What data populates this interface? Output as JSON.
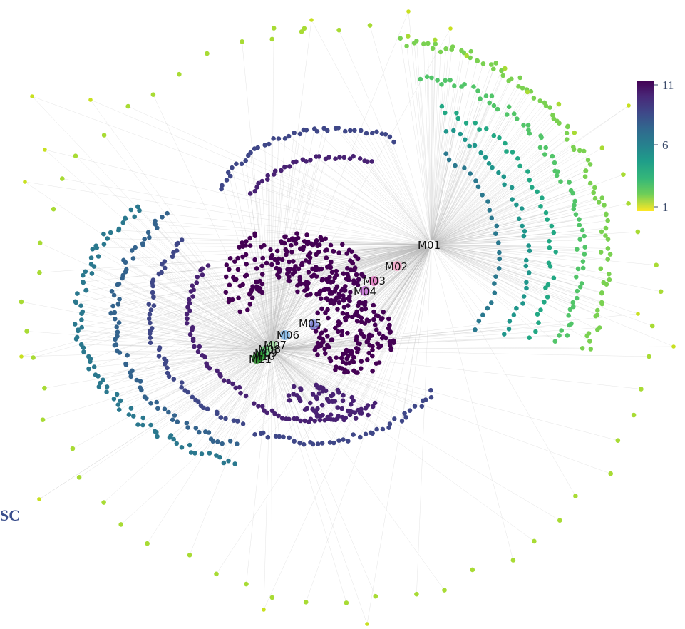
{
  "hubs": [
    {
      "label": "M01",
      "color": "#ffffff"
    },
    {
      "label": "M02",
      "color": "#f4a6c8"
    },
    {
      "label": "M03",
      "color": "#e377c2"
    },
    {
      "label": "M04",
      "color": "#c06bd0"
    },
    {
      "label": "M05",
      "color": "#8a96e0"
    },
    {
      "label": "M06",
      "color": "#7fb6e8"
    },
    {
      "label": "M07",
      "color": "#9ed99e"
    },
    {
      "label": "M08",
      "color": "#5fcf6f"
    },
    {
      "label": "M09",
      "color": "#3cb371"
    },
    {
      "label": "M10",
      "color": "#2ca02c"
    },
    {
      "label": "M11",
      "color": "#1f7a1f"
    }
  ],
  "colorbar": {
    "palette": "viridis (reversed: 1 = yellow, 11 = dark purple)",
    "ticks": [
      "11",
      "6",
      "1"
    ],
    "range": [
      1,
      11
    ]
  },
  "corner_label": "SC",
  "edge_color": "#b8b8b8"
}
